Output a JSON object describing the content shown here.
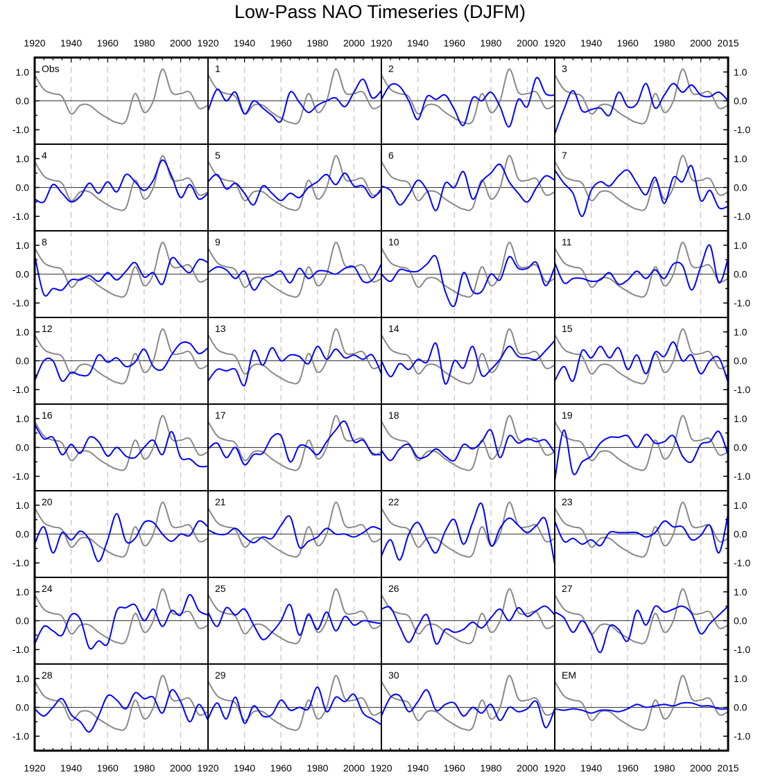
{
  "chart_data": {
    "type": "line",
    "title": "Low-Pass NAO Timeseries (DJFM)",
    "xlabel": "",
    "ylabel": "",
    "xlim": [
      1920,
      2015
    ],
    "ylim": [
      -1.5,
      1.5
    ],
    "grid": "dashed vertical lines at 1940, 1960, 1980, 2000",
    "layout": "8 rows x 4 columns of panels",
    "xtick_labels": [
      "1920",
      "1940",
      "1960",
      "1980",
      "2000"
    ],
    "xtick_last_label": "2015",
    "ytick_labels": [
      "1.0",
      "0.0",
      "-1.0"
    ],
    "ytick_values": [
      1.0,
      0.0,
      -1.0
    ],
    "colors": {
      "obs": "#888888",
      "member": "#0000ff",
      "zero": "#333333",
      "grid": "#cccccc"
    },
    "x": [
      1920,
      1925,
      1930,
      1935,
      1940,
      1945,
      1950,
      1955,
      1960,
      1965,
      1970,
      1975,
      1980,
      1985,
      1990,
      1995,
      2000,
      2005,
      2010,
      2015
    ],
    "obs": {
      "name": "Obs",
      "values": [
        0.9,
        0.4,
        0.25,
        0.15,
        -0.45,
        -0.15,
        -0.15,
        -0.4,
        -0.6,
        -0.75,
        -0.7,
        0.25,
        -0.4,
        0.0,
        1.1,
        0.3,
        0.25,
        0.3,
        -0.25,
        -0.15
      ]
    },
    "panels": [
      {
        "label": "Obs",
        "values": null
      },
      {
        "label": "1",
        "values": [
          -0.35,
          0.4,
          0.0,
          0.3,
          -0.45,
          0.0,
          -0.25,
          -0.5,
          -0.7,
          0.3,
          -0.05,
          -0.4,
          -0.15,
          0.0,
          0.1,
          -0.2,
          0.3,
          0.75,
          0.1,
          0.35
        ]
      },
      {
        "label": "2",
        "values": [
          0.05,
          0.55,
          0.5,
          0.0,
          -0.65,
          0.15,
          0.05,
          0.2,
          -0.3,
          -0.85,
          0.1,
          0.0,
          0.3,
          -0.2,
          -0.9,
          0.05,
          -0.2,
          0.8,
          0.25,
          0.2
        ]
      },
      {
        "label": "3",
        "values": [
          -1.15,
          -0.3,
          0.35,
          -0.35,
          -0.3,
          -0.25,
          -0.5,
          0.3,
          -0.2,
          -0.1,
          0.6,
          -0.25,
          0.2,
          0.6,
          0.3,
          0.55,
          0.2,
          0.15,
          0.3,
          0.0
        ]
      },
      {
        "label": "4",
        "values": [
          -0.4,
          -0.5,
          0.1,
          -0.2,
          -0.5,
          -0.3,
          0.15,
          -0.2,
          0.2,
          -0.15,
          0.45,
          0.2,
          -0.1,
          0.25,
          0.95,
          0.4,
          -0.35,
          0.1,
          -0.4,
          -0.2
        ]
      },
      {
        "label": "5",
        "values": [
          0.2,
          0.45,
          -0.05,
          0.15,
          -0.2,
          -0.6,
          0.05,
          -0.2,
          -0.45,
          -0.2,
          -0.35,
          0.0,
          0.2,
          0.45,
          0.1,
          0.5,
          0.05,
          0.05,
          -0.35,
          -0.05
        ]
      },
      {
        "label": "6",
        "values": [
          0.05,
          -0.1,
          -0.6,
          -0.25,
          0.25,
          -0.1,
          -0.8,
          0.15,
          0.0,
          0.55,
          -0.4,
          0.2,
          0.5,
          0.8,
          0.2,
          -0.2,
          -0.5,
          0.0,
          0.4,
          0.25
        ]
      },
      {
        "label": "7",
        "values": [
          0.6,
          0.15,
          -0.2,
          -1.0,
          -0.1,
          0.2,
          0.05,
          0.4,
          0.6,
          0.15,
          -0.25,
          0.35,
          -0.55,
          0.35,
          0.2,
          0.75,
          -0.45,
          -0.1,
          -0.7,
          -0.65
        ]
      },
      {
        "label": "8",
        "values": [
          0.65,
          -0.7,
          -0.5,
          -0.55,
          -0.2,
          -0.2,
          -0.05,
          -0.25,
          0.05,
          -0.2,
          0.1,
          0.4,
          -0.1,
          0.05,
          -0.35,
          0.55,
          0.3,
          0.05,
          0.5,
          0.4
        ]
      },
      {
        "label": "9",
        "values": [
          0.05,
          0.25,
          0.15,
          -0.15,
          0.1,
          -0.55,
          -0.15,
          -0.05,
          0.1,
          -0.3,
          0.2,
          -0.15,
          0.1,
          0.1,
          0.0,
          0.2,
          0.25,
          -0.25,
          -0.2,
          0.35
        ]
      },
      {
        "label": "10",
        "values": [
          0.0,
          -0.25,
          0.15,
          0.1,
          0.1,
          0.35,
          0.6,
          -0.6,
          -1.1,
          0.05,
          -0.6,
          -0.6,
          0.0,
          -0.2,
          0.6,
          0.2,
          0.2,
          0.4,
          -0.4,
          0.25
        ]
      },
      {
        "label": "11",
        "values": [
          0.4,
          -0.3,
          -0.15,
          -0.15,
          -0.25,
          -0.2,
          0.05,
          -0.35,
          -0.2,
          0.1,
          -0.15,
          0.15,
          -0.15,
          0.35,
          0.3,
          -0.55,
          0.25,
          1.0,
          -0.3,
          0.55
        ]
      },
      {
        "label": "12",
        "values": [
          -0.7,
          0.0,
          0.0,
          -0.7,
          -0.4,
          -0.5,
          -0.45,
          0.2,
          -0.05,
          0.1,
          -0.2,
          -0.05,
          0.4,
          -0.2,
          -0.3,
          0.2,
          0.6,
          0.6,
          0.25,
          0.45
        ]
      },
      {
        "label": "13",
        "values": [
          -0.7,
          -0.3,
          -0.35,
          -0.3,
          -0.85,
          0.35,
          -0.15,
          0.45,
          0.0,
          0.2,
          0.15,
          -0.1,
          0.5,
          0.05,
          0.4,
          0.1,
          0.2,
          0.05,
          0.2,
          -0.45
        ]
      },
      {
        "label": "14",
        "values": [
          0.0,
          -0.55,
          -0.1,
          -0.3,
          0.05,
          -0.05,
          0.6,
          -0.8,
          0.0,
          -0.25,
          0.5,
          -0.5,
          -0.3,
          0.05,
          0.5,
          0.15,
          0.1,
          0.05,
          0.35,
          0.7
        ]
      },
      {
        "label": "15",
        "values": [
          -0.7,
          -0.2,
          -0.7,
          0.35,
          0.1,
          0.5,
          0.1,
          0.45,
          -0.3,
          0.2,
          -0.45,
          0.3,
          0.15,
          0.65,
          0.0,
          0.2,
          -0.45,
          0.0,
          0.1,
          -0.75
        ]
      },
      {
        "label": "16",
        "values": [
          0.8,
          0.3,
          0.35,
          -0.25,
          0.1,
          -0.2,
          0.35,
          0.2,
          -0.3,
          0.0,
          -0.3,
          -0.35,
          0.0,
          0.25,
          -0.25,
          0.55,
          -0.35,
          -0.4,
          -0.65,
          -0.65
        ]
      },
      {
        "label": "17",
        "values": [
          -0.05,
          0.15,
          -0.35,
          0.0,
          -0.6,
          -0.25,
          -0.2,
          0.35,
          0.4,
          -0.5,
          0.05,
          0.0,
          -0.25,
          0.2,
          0.6,
          0.9,
          0.2,
          0.25,
          -0.2,
          -0.25
        ]
      },
      {
        "label": "18",
        "values": [
          -0.1,
          -0.45,
          -0.05,
          0.1,
          -0.35,
          -0.3,
          -0.05,
          -0.3,
          -0.45,
          0.1,
          -0.05,
          0.2,
          0.6,
          -0.35,
          0.4,
          0.15,
          0.3,
          0.2,
          0.25,
          -0.2
        ]
      },
      {
        "label": "19",
        "values": [
          -1.15,
          0.6,
          -0.9,
          -0.5,
          -0.3,
          0.15,
          0.35,
          0.35,
          0.4,
          0.0,
          0.45,
          0.15,
          0.2,
          0.4,
          -0.3,
          -0.5,
          0.1,
          0.2,
          0.55,
          -0.25
        ]
      },
      {
        "label": "20",
        "values": [
          -0.35,
          0.25,
          -0.65,
          0.05,
          -0.2,
          0.1,
          -0.2,
          -0.95,
          -0.2,
          0.7,
          -0.25,
          -0.15,
          0.4,
          0.4,
          0.0,
          -0.25,
          0.0,
          -0.05,
          0.45,
          0.25
        ]
      },
      {
        "label": "21",
        "values": [
          0.15,
          0.0,
          0.0,
          0.2,
          -0.1,
          -0.3,
          -0.1,
          -0.15,
          0.3,
          0.6,
          -0.45,
          -0.25,
          -0.1,
          0.2,
          0.0,
          0.0,
          -0.1,
          0.05,
          0.25,
          0.15
        ]
      },
      {
        "label": "22",
        "values": [
          -0.75,
          -0.2,
          -0.9,
          0.0,
          0.4,
          -0.2,
          -0.65,
          0.1,
          0.5,
          -0.35,
          0.4,
          1.05,
          -0.4,
          0.2,
          0.55,
          0.3,
          0.05,
          0.3,
          0.5,
          -1.05
        ]
      },
      {
        "label": "23",
        "values": [
          0.45,
          -0.25,
          -0.15,
          -0.35,
          -0.2,
          -0.4,
          0.05,
          0.05,
          0.05,
          0.05,
          -0.1,
          0.05,
          0.45,
          0.25,
          0.25,
          -0.2,
          -0.05,
          0.3,
          -0.65,
          0.7
        ]
      },
      {
        "label": "24",
        "values": [
          -0.8,
          -0.2,
          -0.35,
          -0.5,
          0.2,
          0.05,
          -0.95,
          -0.7,
          -0.8,
          0.35,
          0.45,
          0.55,
          0.0,
          0.4,
          -0.2,
          0.35,
          0.2,
          0.9,
          0.35,
          0.2
        ]
      },
      {
        "label": "25",
        "values": [
          0.3,
          -0.2,
          0.45,
          0.2,
          0.4,
          -0.15,
          -0.65,
          -0.4,
          0.0,
          0.55,
          -0.5,
          0.2,
          -0.3,
          0.3,
          -0.35,
          0.15,
          -0.15,
          0.0,
          -0.05,
          -0.1
        ]
      },
      {
        "label": "26",
        "values": [
          0.4,
          0.45,
          -0.2,
          -0.75,
          -0.2,
          0.2,
          -0.8,
          -0.3,
          -0.4,
          -0.3,
          -0.05,
          -0.25,
          0.1,
          0.4,
          0.0,
          0.45,
          0.15,
          0.35,
          0.5,
          0.2
        ]
      },
      {
        "label": "27",
        "values": [
          0.3,
          0.1,
          -0.4,
          0.0,
          -0.45,
          -1.1,
          -0.2,
          -0.3,
          -0.7,
          0.35,
          -0.15,
          0.5,
          0.3,
          0.4,
          0.5,
          0.25,
          -0.45,
          -0.1,
          0.2,
          0.5
        ]
      },
      {
        "label": "28",
        "values": [
          -0.05,
          -0.3,
          0.0,
          0.3,
          -0.25,
          -0.5,
          -0.85,
          -0.3,
          0.4,
          0.25,
          -0.05,
          0.5,
          0.3,
          0.35,
          -0.2,
          0.6,
          0.2,
          -0.5,
          0.1,
          -0.45
        ]
      },
      {
        "label": "29",
        "values": [
          -0.4,
          0.15,
          -0.4,
          0.35,
          -0.55,
          0.05,
          -0.3,
          -0.25,
          0.25,
          -0.1,
          0.0,
          -0.05,
          0.7,
          -0.15,
          0.35,
          0.2,
          0.45,
          -0.2,
          -0.4,
          -0.6
        ]
      },
      {
        "label": "30",
        "values": [
          -0.3,
          0.35,
          0.4,
          -0.15,
          0.2,
          0.6,
          -0.1,
          0.1,
          0.15,
          -0.3,
          0.0,
          -0.2,
          0.1,
          -0.45,
          0.0,
          -0.15,
          -0.05,
          0.2,
          -0.7,
          -0.05
        ]
      },
      {
        "label": "EM",
        "values": [
          -0.05,
          -0.1,
          -0.05,
          -0.1,
          -0.2,
          -0.1,
          -0.1,
          -0.15,
          -0.05,
          0.1,
          0.0,
          0.05,
          0.1,
          0.05,
          0.15,
          0.15,
          0.05,
          0.05,
          -0.05,
          -0.05
        ]
      }
    ]
  }
}
